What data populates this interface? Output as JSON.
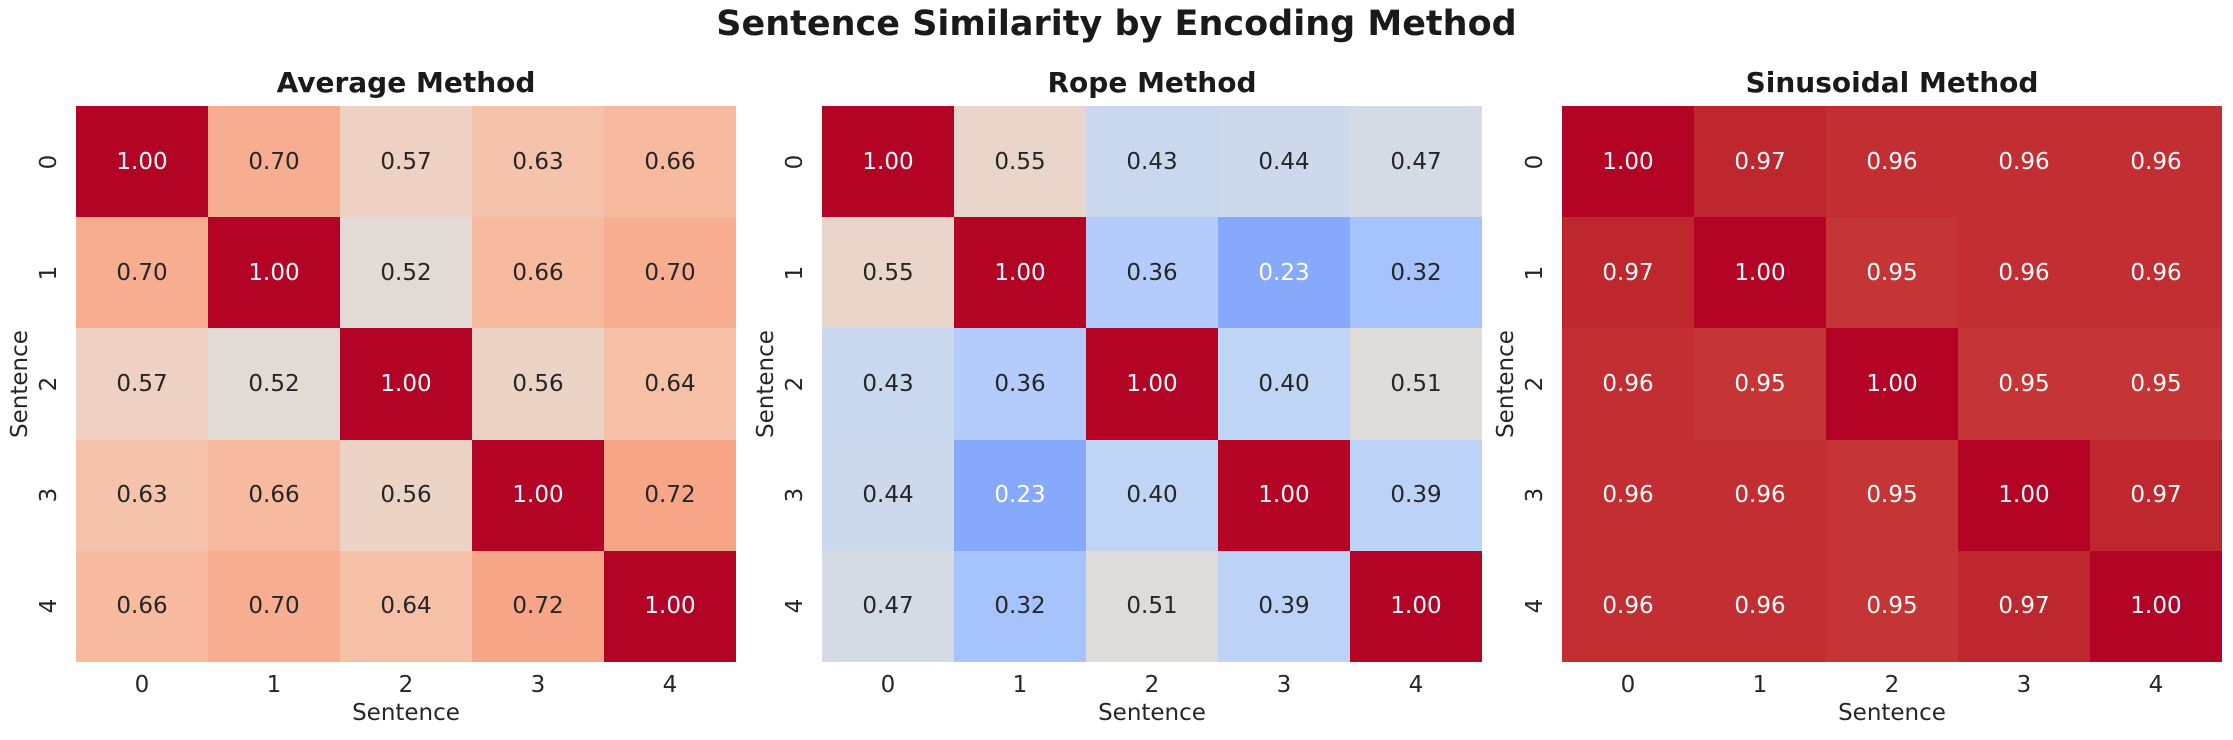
{
  "figure_title": "Sentence Similarity by Encoding Method",
  "style": {
    "background": "#ffffff",
    "title_color": "#1a1a1a",
    "tick_color": "#262626",
    "annot_dark": "#262626",
    "annot_light": "#ffffff",
    "diagonal_red": "#b40426",
    "annot_light_rule": "value > 0.9 or value < 0.3"
  },
  "chart_data": [
    {
      "type": "heatmap",
      "title": "Average Method",
      "xlabel": "Sentence",
      "ylabel": "Sentence",
      "x_ticks": [
        "0",
        "1",
        "2",
        "3",
        "4"
      ],
      "y_ticks": [
        "0",
        "1",
        "2",
        "3",
        "4"
      ],
      "colormap": "coolwarm",
      "vmin": 0,
      "vmax": 1,
      "values": [
        [
          1.0,
          0.7,
          0.57,
          0.63,
          0.66
        ],
        [
          0.7,
          1.0,
          0.52,
          0.66,
          0.7
        ],
        [
          0.57,
          0.52,
          1.0,
          0.56,
          0.64
        ],
        [
          0.63,
          0.66,
          0.56,
          1.0,
          0.72
        ],
        [
          0.66,
          0.7,
          0.64,
          0.72,
          1.0
        ]
      ]
    },
    {
      "type": "heatmap",
      "title": "Rope Method",
      "xlabel": "Sentence",
      "ylabel": "Sentence",
      "x_ticks": [
        "0",
        "1",
        "2",
        "3",
        "4"
      ],
      "y_ticks": [
        "0",
        "1",
        "2",
        "3",
        "4"
      ],
      "colormap": "coolwarm",
      "vmin": 0,
      "vmax": 1,
      "values": [
        [
          1.0,
          0.55,
          0.43,
          0.44,
          0.47
        ],
        [
          0.55,
          1.0,
          0.36,
          0.23,
          0.32
        ],
        [
          0.43,
          0.36,
          1.0,
          0.4,
          0.51
        ],
        [
          0.44,
          0.23,
          0.4,
          1.0,
          0.39
        ],
        [
          0.47,
          0.32,
          0.51,
          0.39,
          1.0
        ]
      ]
    },
    {
      "type": "heatmap",
      "title": "Sinusoidal Method",
      "xlabel": "Sentence",
      "ylabel": "Sentence",
      "x_ticks": [
        "0",
        "1",
        "2",
        "3",
        "4"
      ],
      "y_ticks": [
        "0",
        "1",
        "2",
        "3",
        "4"
      ],
      "colormap": "coolwarm",
      "vmin": 0,
      "vmax": 1,
      "values": [
        [
          1.0,
          0.97,
          0.96,
          0.96,
          0.96
        ],
        [
          0.97,
          1.0,
          0.95,
          0.96,
          0.96
        ],
        [
          0.96,
          0.95,
          1.0,
          0.95,
          0.95
        ],
        [
          0.96,
          0.96,
          0.95,
          1.0,
          0.97
        ],
        [
          0.96,
          0.96,
          0.95,
          0.97,
          1.0
        ]
      ]
    }
  ]
}
